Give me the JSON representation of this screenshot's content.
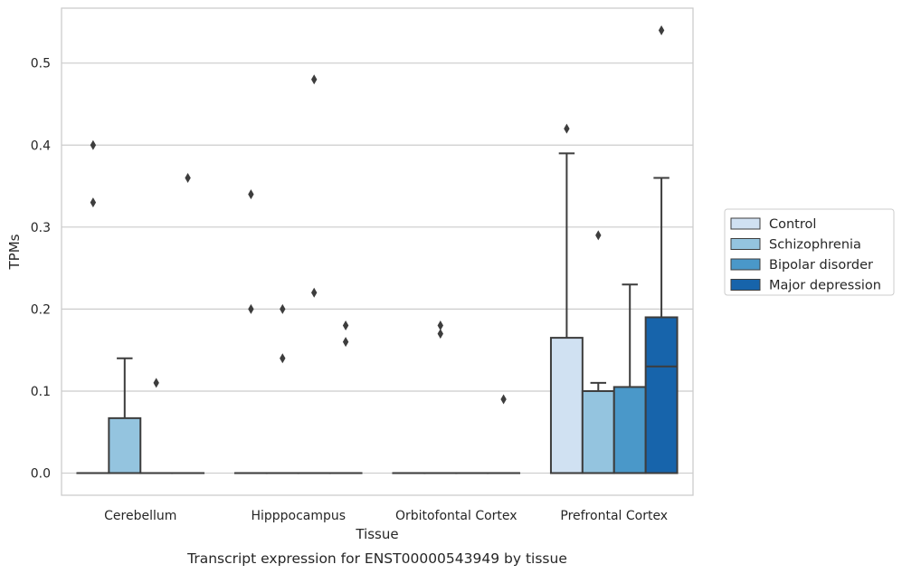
{
  "chart_data": {
    "type": "box",
    "caption": "Transcript expression for ENST00000543949 by tissue",
    "xlabel": "Tissue",
    "ylabel": "TPMs",
    "ylim": [
      -0.027,
      0.567
    ],
    "yticks": [
      0.0,
      0.1,
      0.2,
      0.3,
      0.4,
      0.5
    ],
    "ytick_labels": [
      "0.0",
      "0.1",
      "0.2",
      "0.3",
      "0.4",
      "0.5"
    ],
    "grid": "horizontal",
    "legend_position": "right",
    "categories": [
      "Cerebellum",
      "Hipppocampus",
      "Orbitofontal Cortex",
      "Prefrontal Cortex"
    ],
    "series": [
      {
        "name": "Control",
        "color": "#d0e1f2",
        "boxes": [
          {
            "q1": 0,
            "median": 0,
            "q3": 0,
            "whisker_low": 0,
            "whisker_high": 0,
            "outliers": [
              0.4,
              0.33
            ]
          },
          {
            "q1": 0,
            "median": 0,
            "q3": 0,
            "whisker_low": 0,
            "whisker_high": 0,
            "outliers": [
              0.34,
              0.2
            ]
          },
          {
            "q1": 0,
            "median": 0,
            "q3": 0,
            "whisker_low": 0,
            "whisker_high": 0,
            "outliers": []
          },
          {
            "q1": 0,
            "median": 0,
            "q3": 0.165,
            "whisker_low": 0,
            "whisker_high": 0.39,
            "outliers": [
              0.42
            ]
          }
        ]
      },
      {
        "name": "Schizophrenia",
        "color": "#94c4df",
        "boxes": [
          {
            "q1": 0,
            "median": 0,
            "q3": 0.067,
            "whisker_low": 0,
            "whisker_high": 0.14,
            "outliers": []
          },
          {
            "q1": 0,
            "median": 0,
            "q3": 0,
            "whisker_low": 0,
            "whisker_high": 0,
            "outliers": [
              0.2,
              0.14
            ]
          },
          {
            "q1": 0,
            "median": 0,
            "q3": 0,
            "whisker_low": 0,
            "whisker_high": 0,
            "outliers": [
              0.18,
              0.17
            ]
          },
          {
            "q1": 0,
            "median": 0,
            "q3": 0.1,
            "whisker_low": 0,
            "whisker_high": 0.11,
            "outliers": [
              0.29
            ]
          }
        ]
      },
      {
        "name": "Bipolar disorder",
        "color": "#4a98c9",
        "boxes": [
          {
            "q1": 0,
            "median": 0,
            "q3": 0,
            "whisker_low": 0,
            "whisker_high": 0,
            "outliers": [
              0.11
            ]
          },
          {
            "q1": 0,
            "median": 0,
            "q3": 0,
            "whisker_low": 0,
            "whisker_high": 0,
            "outliers": [
              0.48,
              0.22
            ]
          },
          {
            "q1": 0,
            "median": 0,
            "q3": 0,
            "whisker_low": 0,
            "whisker_high": 0,
            "outliers": []
          },
          {
            "q1": 0,
            "median": 0,
            "q3": 0.105,
            "whisker_low": 0,
            "whisker_high": 0.23,
            "outliers": []
          }
        ]
      },
      {
        "name": "Major depression",
        "color": "#1764ab",
        "boxes": [
          {
            "q1": 0,
            "median": 0,
            "q3": 0,
            "whisker_low": 0,
            "whisker_high": 0,
            "outliers": [
              0.36
            ]
          },
          {
            "q1": 0,
            "median": 0,
            "q3": 0,
            "whisker_low": 0,
            "whisker_high": 0,
            "outliers": [
              0.18,
              0.16
            ]
          },
          {
            "q1": 0,
            "median": 0,
            "q3": 0,
            "whisker_low": 0,
            "whisker_high": 0,
            "outliers": [
              0.09
            ]
          },
          {
            "q1": 0,
            "median": 0.13,
            "q3": 0.19,
            "whisker_low": 0,
            "whisker_high": 0.36,
            "outliers": [
              0.54
            ]
          }
        ]
      }
    ]
  }
}
